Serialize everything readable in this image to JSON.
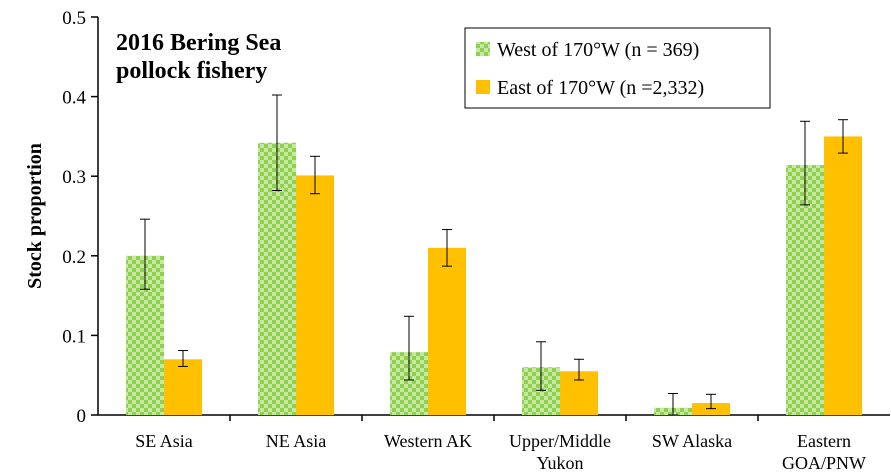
{
  "chart_data": {
    "type": "bar",
    "title": "2016 Bering Sea\npollock fishery",
    "ylabel": "Stock  proportion",
    "xlabel": "",
    "ylim": [
      0,
      0.5
    ],
    "yticks": [
      "0",
      "0.1",
      "0.2",
      "0.3",
      "0.4",
      "0.5"
    ],
    "grid": false,
    "legend_position": "top-right",
    "categories": [
      "SE Asia",
      "NE Asia",
      "Western AK",
      "Upper/Middle\nYukon",
      "SW Alaska",
      "Eastern\nGOA/PNW"
    ],
    "series": [
      {
        "name": "West of 170°W (n = 369)",
        "values": [
          0.2,
          0.342,
          0.079,
          0.06,
          0.009,
          0.314
        ],
        "error_low": [
          0.158,
          0.282,
          0.044,
          0.031,
          0.0,
          0.264
        ],
        "error_high": [
          0.246,
          0.402,
          0.124,
          0.092,
          0.027,
          0.369
        ],
        "color": "#8fd14f",
        "pattern": "checker"
      },
      {
        "name": "East of 170°W (n =2,332)",
        "values": [
          0.07,
          0.301,
          0.21,
          0.055,
          0.015,
          0.35
        ],
        "error_low": [
          0.061,
          0.278,
          0.187,
          0.044,
          0.008,
          0.329
        ],
        "error_high": [
          0.081,
          0.325,
          0.233,
          0.07,
          0.026,
          0.371
        ],
        "color": "#ffc000",
        "pattern": "solid"
      }
    ]
  }
}
